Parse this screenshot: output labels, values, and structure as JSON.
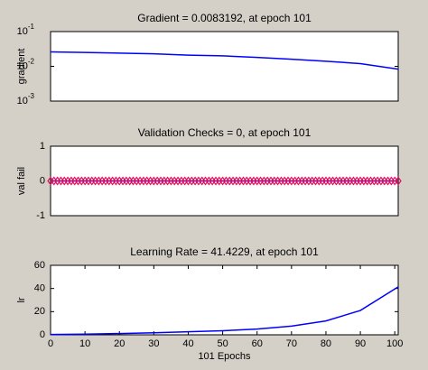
{
  "chart_data": [
    {
      "type": "line",
      "title": "Gradient = 0.0083192, at epoch 101",
      "ylabel": "gradient",
      "log_y": true,
      "x": [
        0,
        10,
        20,
        30,
        40,
        50,
        60,
        70,
        80,
        90,
        101
      ],
      "values": [
        0.026,
        0.025,
        0.024,
        0.023,
        0.021,
        0.02,
        0.018,
        0.016,
        0.014,
        0.012,
        0.0083192
      ],
      "color": "#0000ff",
      "xlim": [
        0,
        101
      ],
      "ylim": [
        0.001,
        0.1
      ],
      "yticks": [
        {
          "value": 0.1,
          "label": "10-1"
        },
        {
          "value": 0.01,
          "label": "10-2"
        },
        {
          "value": 0.001,
          "label": "10-3"
        }
      ]
    },
    {
      "type": "line",
      "title": "Validation Checks = 0, at epoch 101",
      "ylabel": "val fail",
      "x": [
        0,
        1,
        2,
        3,
        4,
        5,
        6,
        7,
        8,
        9,
        10,
        11,
        12,
        13,
        14,
        15,
        16,
        17,
        18,
        19,
        20,
        21,
        22,
        23,
        24,
        25,
        26,
        27,
        28,
        29,
        30,
        31,
        32,
        33,
        34,
        35,
        36,
        37,
        38,
        39,
        40,
        41,
        42,
        43,
        44,
        45,
        46,
        47,
        48,
        49,
        50,
        51,
        52,
        53,
        54,
        55,
        56,
        57,
        58,
        59,
        60,
        61,
        62,
        63,
        64,
        65,
        66,
        67,
        68,
        69,
        70,
        71,
        72,
        73,
        74,
        75,
        76,
        77,
        78,
        79,
        80,
        81,
        82,
        83,
        84,
        85,
        86,
        87,
        88,
        89,
        90,
        91,
        92,
        93,
        94,
        95,
        96,
        97,
        98,
        99,
        100,
        101
      ],
      "values": [
        0,
        0,
        0,
        0,
        0,
        0,
        0,
        0,
        0,
        0,
        0,
        0,
        0,
        0,
        0,
        0,
        0,
        0,
        0,
        0,
        0,
        0,
        0,
        0,
        0,
        0,
        0,
        0,
        0,
        0,
        0,
        0,
        0,
        0,
        0,
        0,
        0,
        0,
        0,
        0,
        0,
        0,
        0,
        0,
        0,
        0,
        0,
        0,
        0,
        0,
        0,
        0,
        0,
        0,
        0,
        0,
        0,
        0,
        0,
        0,
        0,
        0,
        0,
        0,
        0,
        0,
        0,
        0,
        0,
        0,
        0,
        0,
        0,
        0,
        0,
        0,
        0,
        0,
        0,
        0,
        0,
        0,
        0,
        0,
        0,
        0,
        0,
        0,
        0,
        0,
        0,
        0,
        0,
        0,
        0,
        0,
        0,
        0,
        0,
        0,
        0,
        0
      ],
      "color": "#0000ff",
      "marker_color": "#e0105a",
      "xlim": [
        0,
        101
      ],
      "ylim": [
        -1,
        1
      ],
      "yticks": [
        -1,
        0,
        1
      ]
    },
    {
      "type": "line",
      "title": "Learning Rate = 41.4229, at epoch 101",
      "ylabel": "lr",
      "xlabel": "101 Epochs",
      "x": [
        0,
        10,
        20,
        30,
        40,
        50,
        60,
        70,
        80,
        90,
        101
      ],
      "values": [
        0.3,
        0.6,
        1.1,
        1.8,
        2.6,
        3.5,
        5,
        7.5,
        12,
        21,
        41.4229
      ],
      "color": "#0000ff",
      "xlim": [
        0,
        101
      ],
      "ylim": [
        0,
        60
      ],
      "yticks": [
        0,
        20,
        40,
        60
      ],
      "xticks": [
        0,
        10,
        20,
        30,
        40,
        50,
        60,
        70,
        80,
        90,
        100
      ]
    }
  ]
}
